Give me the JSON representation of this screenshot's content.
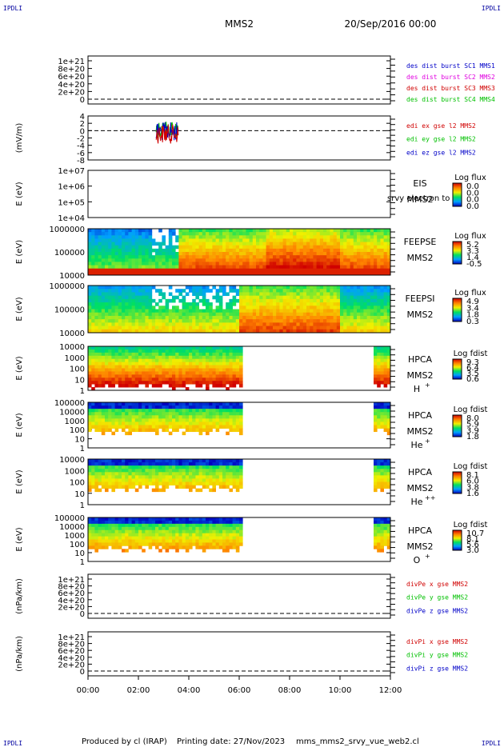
{
  "corner_labels": {
    "tl": "IPDLI",
    "tr": "IPDLI",
    "bl": "IPDLI",
    "br": "IPDLI"
  },
  "header": {
    "spacecraft": "MMS2",
    "date": "20/Sep/2016 00:00"
  },
  "footer": {
    "produced": "Produced by cl (IRAP)",
    "printing": "Printing date: 27/Nov/2023",
    "file": "mms_mms2_srvy_vue_web2.cl"
  },
  "colors": {
    "red": "#d00000",
    "magenta": "#e000e0",
    "green": "#00c000",
    "blue": "#0000c8"
  },
  "chart_data": [
    {
      "id": "des_dist",
      "type": "line",
      "yticks": [
        "1e+21",
        "8e+20",
        "6e+20",
        "4e+20",
        "2e+20",
        "0"
      ],
      "ylabel": "",
      "legend": [
        {
          "name": "des dist burst SC1 MMS1",
          "color": "#0000c8"
        },
        {
          "name": "des dist burst SC2 MMS2",
          "color": "#e000e0"
        },
        {
          "name": "des dist burst SC3 MMS3",
          "color": "#d00000"
        },
        {
          "name": "des dist burst SC4 MMS4",
          "color": "#00c000"
        }
      ],
      "zero_line": true
    },
    {
      "id": "edi",
      "type": "line",
      "yticks": [
        "4",
        "2",
        "0",
        "-2",
        "-4",
        "-6",
        "-8"
      ],
      "ylabel": "(mV/m)",
      "legend": [
        {
          "name": "edi ex gse l2 MMS2",
          "color": "#d00000"
        },
        {
          "name": "edi ey gse l2 MMS2",
          "color": "#00c000"
        },
        {
          "name": "edi ez gse l2 MMS2",
          "color": "#0000c8"
        }
      ],
      "zero_line": true,
      "data_hours": [
        2.7,
        3.6
      ]
    },
    {
      "id": "eis",
      "type": "heatmap",
      "yticks": [
        "1e+07",
        "1e+06",
        "1e+05",
        "1e+04"
      ],
      "ylabel": "E (eV)",
      "instrument": "EIS",
      "extra": "srvy electron to",
      "sc": "MMS2",
      "species": "",
      "cbar_title": "Log flux",
      "cbar_ticks": [
        "0.0",
        "0.0",
        "0.0",
        "0.0"
      ]
    },
    {
      "id": "feepse",
      "type": "heatmap",
      "yticks": [
        "1000000",
        "100000",
        "10000"
      ],
      "ylabel": "E (eV)",
      "instrument": "FEEPSE",
      "sc": "MMS2",
      "species": "",
      "cbar_title": "Log flux",
      "cbar_ticks": [
        "5.2",
        "3.3",
        "1.4",
        "-0.5"
      ]
    },
    {
      "id": "feepsi",
      "type": "heatmap",
      "yticks": [
        "1000000",
        "100000",
        "10000"
      ],
      "ylabel": "E (eV)",
      "instrument": "FEEPSI",
      "sc": "MMS2",
      "species": "",
      "cbar_title": "Log flux",
      "cbar_ticks": [
        "4.9",
        "3.4",
        "1.8",
        "0.3"
      ]
    },
    {
      "id": "hpca_h",
      "type": "heatmap",
      "yticks": [
        "10000",
        "1000",
        "100",
        "10",
        "1"
      ],
      "ylabel": "E (eV)",
      "instrument": "HPCA",
      "sc": "MMS2",
      "species": "H",
      "species_sup": "+",
      "cbar_title": "Log fdist",
      "cbar_ticks": [
        "9.3",
        "6.4",
        "3.5",
        "0.6"
      ],
      "coverage_hours": [
        [
          0.0,
          6.1
        ],
        [
          11.3,
          12.0
        ]
      ]
    },
    {
      "id": "hpca_he",
      "type": "heatmap",
      "yticks": [
        "100000",
        "10000",
        "1000",
        "100",
        "10",
        "1"
      ],
      "ylabel": "E (eV)",
      "instrument": "HPCA",
      "sc": "MMS2",
      "species": "He",
      "species_sup": "+",
      "cbar_title": "Log fdist",
      "cbar_ticks": [
        "8.0",
        "5.9",
        "3.9",
        "1.8"
      ],
      "coverage_hours": [
        [
          0.0,
          6.1
        ],
        [
          11.3,
          12.0
        ]
      ]
    },
    {
      "id": "hpca_he2",
      "type": "heatmap",
      "yticks": [
        "10000",
        "1000",
        "100",
        "10",
        "1"
      ],
      "ylabel": "E (eV)",
      "instrument": "HPCA",
      "sc": "MMS2",
      "species": "He",
      "species_sup": "++",
      "cbar_title": "Log fdist",
      "cbar_ticks": [
        "8.1",
        "6.0",
        "3.8",
        "1.6"
      ],
      "coverage_hours": [
        [
          0.0,
          6.1
        ],
        [
          11.3,
          12.0
        ]
      ]
    },
    {
      "id": "hpca_o",
      "type": "heatmap",
      "yticks": [
        "100000",
        "10000",
        "1000",
        "100",
        "10",
        "1"
      ],
      "ylabel": "E (eV)",
      "instrument": "HPCA",
      "sc": "MMS2",
      "species": "O",
      "species_sup": "+",
      "cbar_title": "Log fdist",
      "cbar_ticks": [
        "10.7",
        "8.1",
        "5.6",
        "3.0"
      ],
      "coverage_hours": [
        [
          0.0,
          6.1
        ],
        [
          11.3,
          12.0
        ]
      ]
    },
    {
      "id": "divpe",
      "type": "line",
      "yticks": [
        "1e+21",
        "8e+20",
        "6e+20",
        "4e+20",
        "2e+20",
        "0"
      ],
      "ylabel": "(nPa/km)",
      "legend": [
        {
          "name": "divPe x gse MMS2",
          "color": "#d00000"
        },
        {
          "name": "divPe y gse MMS2",
          "color": "#00c000"
        },
        {
          "name": "divPe z gse MMS2",
          "color": "#0000c8"
        }
      ],
      "zero_line": true
    },
    {
      "id": "divpi",
      "type": "line",
      "yticks": [
        "1e+21",
        "8e+20",
        "6e+20",
        "4e+20",
        "2e+20",
        "0"
      ],
      "ylabel": "(nPa/km)",
      "legend": [
        {
          "name": "divPi x gse MMS2",
          "color": "#d00000"
        },
        {
          "name": "divPi y gse MMS2",
          "color": "#00c000"
        },
        {
          "name": "divPi z gse MMS2",
          "color": "#0000c8"
        }
      ],
      "zero_line": true
    }
  ],
  "xaxis": {
    "ticks": [
      "00:00",
      "02:00",
      "04:00",
      "06:00",
      "08:00",
      "10:00",
      "12:00"
    ],
    "range_hours": [
      0,
      12
    ]
  }
}
